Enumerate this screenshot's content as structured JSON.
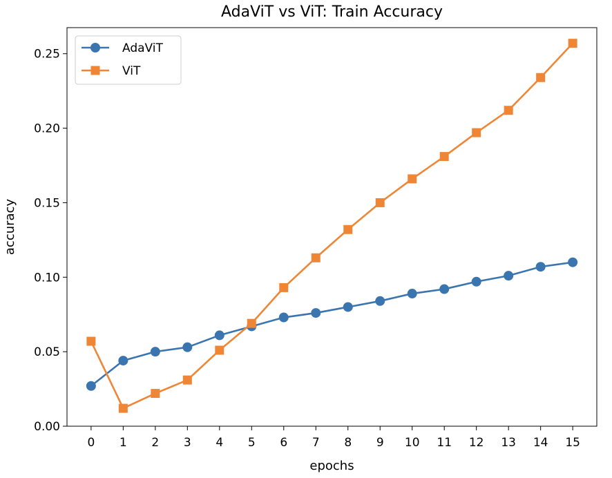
{
  "chart_data": {
    "type": "line",
    "title": "AdaViT vs ViT: Train Accuracy",
    "xlabel": "epochs",
    "ylabel": "accuracy",
    "x": [
      0,
      1,
      2,
      3,
      4,
      5,
      6,
      7,
      8,
      9,
      10,
      11,
      12,
      13,
      14,
      15
    ],
    "xlim": [
      -0.75,
      15.75
    ],
    "ylim": [
      0,
      0.2675
    ],
    "yticks": [
      0.0,
      0.05,
      0.1,
      0.15,
      0.2,
      0.25
    ],
    "ytick_labels": [
      "0.00",
      "0.05",
      "0.10",
      "0.15",
      "0.20",
      "0.25"
    ],
    "grid": false,
    "legend_position": "top-left",
    "series": [
      {
        "name": "AdaViT",
        "color": "#3b75af",
        "marker": "circle",
        "values": [
          0.027,
          0.044,
          0.05,
          0.053,
          0.061,
          0.067,
          0.073,
          0.076,
          0.08,
          0.084,
          0.089,
          0.092,
          0.097,
          0.101,
          0.107,
          0.11
        ]
      },
      {
        "name": "ViT",
        "color": "#ef8636",
        "marker": "square",
        "values": [
          0.057,
          0.012,
          0.022,
          0.031,
          0.051,
          0.069,
          0.093,
          0.113,
          0.132,
          0.15,
          0.166,
          0.181,
          0.197,
          0.212,
          0.234,
          0.257
        ]
      }
    ]
  }
}
